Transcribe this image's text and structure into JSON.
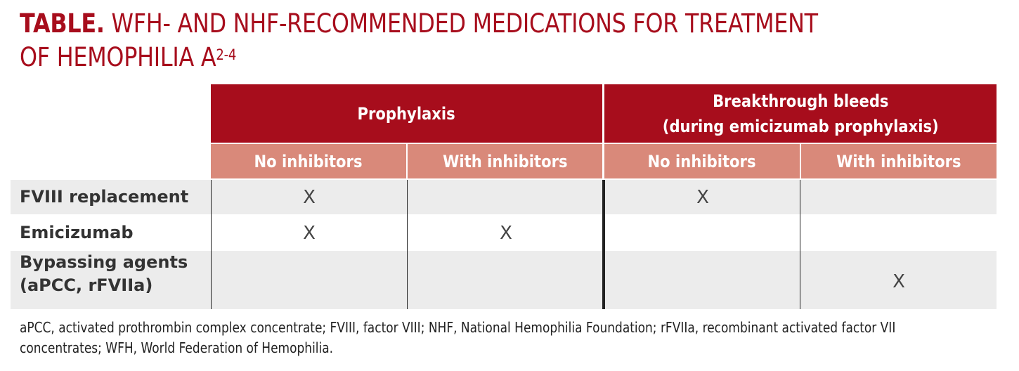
{
  "title": {
    "label": "TABLE.",
    "text_line1": "WFH- AND NHF-RECOMMENDED MEDICATIONS FOR TREATMENT",
    "text_line2": "OF HEMOPHILIA A",
    "superscript": "2-4"
  },
  "table": {
    "groups": [
      {
        "label": "Prophylaxis"
      },
      {
        "label_line1": "Breakthrough bleeds",
        "label_line2": "(during emicizumab prophylaxis)"
      }
    ],
    "subheaders": [
      "No inhibitors",
      "With inhibitors",
      "No inhibitors",
      "With inhibitors"
    ],
    "rows": [
      {
        "label": "FVIII replacement",
        "cells": [
          "X",
          "",
          "X",
          ""
        ]
      },
      {
        "label": "Emicizumab",
        "cells": [
          "X",
          "X",
          "",
          ""
        ]
      },
      {
        "label_line1": "Bypassing agents",
        "label_line2": "(aPCC, rFVIIa)",
        "cells": [
          "",
          "",
          "",
          "X"
        ]
      }
    ],
    "colors": {
      "header_primary": "#a70d1c",
      "header_secondary": "#d9897a",
      "row_shade": "#ececec"
    }
  },
  "footnote": {
    "line1": "aPCC, activated prothrombin complex concentrate; FVIII, factor VIII; NHF, National Hemophilia Foundation; rFVIIa, recombinant activated factor VII",
    "line2": "concentrates; WFH, World Federation of Hemophilia."
  }
}
